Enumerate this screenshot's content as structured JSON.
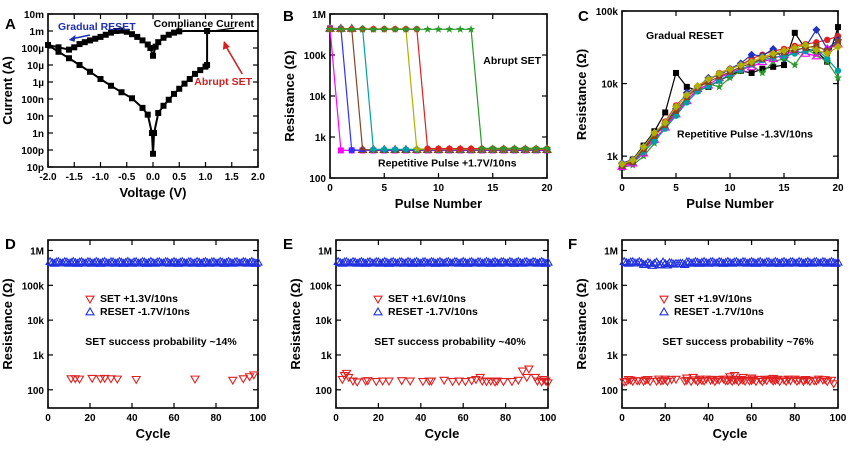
{
  "chart_data": [
    {
      "panel": "A",
      "type": "line",
      "xlabel": "Voltage (V)",
      "ylabel": "Current (A)",
      "xlim": [
        -2.0,
        2.0
      ],
      "ylim_log": [
        1e-11,
        0.01
      ],
      "x_ticks": [
        {
          "v": -2.0,
          "label": "-2.0"
        },
        {
          "v": -1.5,
          "label": "-1.5"
        },
        {
          "v": -1.0,
          "label": "-1.0"
        },
        {
          "v": -0.5,
          "label": "-0.5"
        },
        {
          "v": 0.0,
          "label": "0.0"
        },
        {
          "v": 0.5,
          "label": "0.5"
        },
        {
          "v": 1.0,
          "label": "1.0"
        },
        {
          "v": 1.5,
          "label": "1.5"
        },
        {
          "v": 2.0,
          "label": "2.0"
        }
      ],
      "y_ticks": [
        {
          "v": 1e-11,
          "label": "10p"
        },
        {
          "v": 1e-10,
          "label": "100p"
        },
        {
          "v": 1e-09,
          "label": "1n"
        },
        {
          "v": 1e-08,
          "label": "10n"
        },
        {
          "v": 1e-07,
          "label": "100n"
        },
        {
          "v": 1e-06,
          "label": "1µ"
        },
        {
          "v": 1e-05,
          "label": "10µ"
        },
        {
          "v": 0.0001,
          "label": "100µ"
        },
        {
          "v": 0.001,
          "label": "1m"
        },
        {
          "v": 0.01,
          "label": "10m"
        }
      ],
      "annotations": {
        "gradual": "Gradual RESET",
        "compliance": "Compliance Current",
        "abrupt": "Abrupt SET"
      },
      "colors": {
        "gradual": "#1f2fb0",
        "abrupt": "#d42020",
        "line": "#000000"
      },
      "series": [
        {
          "name": "sweep-upper",
          "points": [
            [
              -2.0,
              0.00015
            ],
            [
              -1.8,
              0.00011
            ],
            [
              -1.6,
              8e-05
            ],
            [
              -1.5,
              0.00011
            ],
            [
              -1.4,
              0.00017
            ],
            [
              -1.3,
              0.00022
            ],
            [
              -1.2,
              0.00028
            ],
            [
              -1.1,
              0.00035
            ],
            [
              -1.0,
              0.00045
            ],
            [
              -0.9,
              0.0006
            ],
            [
              -0.8,
              0.0008
            ],
            [
              -0.7,
              0.001
            ],
            [
              -0.6,
              0.00105
            ],
            [
              -0.5,
              0.0009
            ],
            [
              -0.4,
              0.00065
            ],
            [
              -0.3,
              0.00045
            ],
            [
              -0.2,
              0.00028
            ],
            [
              -0.1,
              0.00016
            ],
            [
              -0.05,
              0.0001
            ],
            [
              0.0,
              3.5e-05
            ],
            [
              0.05,
              0.00012
            ],
            [
              0.1,
              0.00022
            ],
            [
              0.2,
              0.0004
            ],
            [
              0.3,
              0.0006
            ],
            [
              0.4,
              0.0008
            ],
            [
              0.5,
              0.00095
            ],
            [
              0.6,
              0.001
            ],
            [
              0.8,
              0.001
            ],
            [
              1.0,
              0.001
            ],
            [
              1.2,
              0.001
            ],
            [
              1.4,
              0.001
            ],
            [
              1.6,
              0.001
            ],
            [
              1.8,
              0.001
            ],
            [
              2.0,
              0.001
            ]
          ]
        },
        {
          "name": "sweep-lower",
          "points": [
            [
              -2.0,
              0.00015
            ],
            [
              -1.8,
              6e-05
            ],
            [
              -1.6,
              2.5e-05
            ],
            [
              -1.4,
              1e-05
            ],
            [
              -1.2,
              4e-06
            ],
            [
              -1.0,
              1.5e-06
            ],
            [
              -0.8,
              6e-07
            ],
            [
              -0.6,
              2.5e-07
            ],
            [
              -0.4,
              1.1e-07
            ],
            [
              -0.2,
              3e-08
            ],
            [
              -0.1,
              1.2e-08
            ],
            [
              -0.02,
              1e-09
            ],
            [
              0.0,
              6e-11
            ],
            [
              0.02,
              1e-09
            ],
            [
              0.1,
              1.5e-08
            ],
            [
              0.2,
              4e-08
            ],
            [
              0.3,
              9e-08
            ],
            [
              0.4,
              2e-07
            ],
            [
              0.5,
              4e-07
            ],
            [
              0.6,
              8e-07
            ],
            [
              0.7,
              1.5e-06
            ],
            [
              0.8,
              3e-06
            ],
            [
              0.9,
              5e-06
            ],
            [
              1.0,
              8e-06
            ],
            [
              1.03,
              1e-05
            ],
            [
              1.03,
              0.001
            ]
          ]
        }
      ]
    },
    {
      "panel": "B",
      "type": "line",
      "xlabel": "Pulse Number",
      "ylabel": "Resistance (Ω)",
      "xlim": [
        0,
        20
      ],
      "ylim_log": [
        100,
        1000000
      ],
      "x_ticks": [
        {
          "v": 0,
          "label": "0"
        },
        {
          "v": 5,
          "label": "5"
        },
        {
          "v": 10,
          "label": "10"
        },
        {
          "v": 15,
          "label": "15"
        },
        {
          "v": 20,
          "label": "20"
        }
      ],
      "y_ticks": [
        {
          "v": 100,
          "label": "100"
        },
        {
          "v": 1000,
          "label": "1k"
        },
        {
          "v": 10000,
          "label": "10k"
        },
        {
          "v": 100000,
          "label": "100k"
        },
        {
          "v": 1000000,
          "label": "1M"
        }
      ],
      "annotations": {
        "abrupt": "Abrupt SET",
        "pulse": "Repetitive Pulse +1.7V/10ns"
      },
      "high_state": 450000,
      "low_state": 500,
      "switch_pulses": [
        1,
        2,
        3,
        4,
        8,
        9,
        14
      ],
      "series_colors": [
        "#ff00ff",
        "#3030ff",
        "#884422",
        "#00a0a0",
        "#b0b000",
        "#e02020",
        "#2a9a2a"
      ]
    },
    {
      "panel": "C",
      "type": "line",
      "xlabel": "Pulse Number",
      "ylabel": "Resistance (Ω)",
      "xlim": [
        0,
        20
      ],
      "ylim_log": [
        500,
        100000
      ],
      "x_ticks": [
        {
          "v": 0,
          "label": "0"
        },
        {
          "v": 5,
          "label": "5"
        },
        {
          "v": 10,
          "label": "10"
        },
        {
          "v": 15,
          "label": "15"
        },
        {
          "v": 20,
          "label": "20"
        }
      ],
      "y_ticks": [
        {
          "v": 1000,
          "label": "1k"
        },
        {
          "v": 10000,
          "label": "10k"
        },
        {
          "v": 100000,
          "label": "100k"
        }
      ],
      "annotations": {
        "gradual": "Gradual RESET",
        "pulse": "Repetitive Pulse -1.3V/10ns"
      },
      "series": [
        {
          "color": "#000000",
          "values": [
            700,
            900,
            1400,
            2200,
            4000,
            14000,
            9000,
            8000,
            9000,
            11000,
            13000,
            15000,
            14000,
            16000,
            17000,
            18000,
            50000,
            30000,
            28000,
            20000,
            60000
          ]
        },
        {
          "color": "#e02020",
          "values": [
            750,
            850,
            1200,
            1800,
            3000,
            5000,
            7000,
            9000,
            11000,
            14000,
            16000,
            18000,
            22000,
            25000,
            28000,
            30000,
            33000,
            35000,
            37000,
            40000,
            45000
          ]
        },
        {
          "color": "#2030c0",
          "values": [
            800,
            900,
            1300,
            2000,
            2800,
            4500,
            7500,
            9000,
            12000,
            13000,
            16000,
            19000,
            25000,
            24000,
            30000,
            22000,
            28000,
            32000,
            55000,
            30000,
            40000
          ]
        },
        {
          "color": "#2a9a2a",
          "values": [
            700,
            750,
            1000,
            1500,
            2600,
            4000,
            6000,
            8000,
            10000,
            9000,
            12000,
            15000,
            18000,
            14000,
            20000,
            22000,
            18000,
            30000,
            25000,
            20000,
            12000
          ]
        },
        {
          "color": "#ff00ff",
          "values": [
            720,
            800,
            1100,
            1700,
            2500,
            3800,
            5800,
            8500,
            9500,
            12000,
            14000,
            16000,
            17000,
            20000,
            22000,
            25000,
            28000,
            26000,
            24000,
            30000,
            35000
          ]
        },
        {
          "color": "#00a0a0",
          "values": [
            760,
            820,
            1150,
            1600,
            2400,
            3600,
            5500,
            7800,
            9200,
            11000,
            13500,
            15500,
            18500,
            21000,
            23000,
            24000,
            26000,
            28000,
            30000,
            22000,
            15000
          ]
        },
        {
          "color": "#884422",
          "values": [
            740,
            830,
            1250,
            1900,
            2700,
            4200,
            6500,
            8800,
            10500,
            12500,
            14500,
            17000,
            19000,
            22000,
            24500,
            27000,
            29000,
            31000,
            33000,
            28000,
            38000
          ]
        },
        {
          "color": "#b0b000",
          "values": [
            780,
            880,
            1350,
            2100,
            2900,
            4800,
            7000,
            9300,
            11500,
            13800,
            15800,
            18000,
            20000,
            23000,
            26000,
            28500,
            31000,
            34000,
            29000,
            26000,
            32000
          ]
        }
      ]
    },
    {
      "panel": "D",
      "type": "scatter",
      "xlabel": "Cycle",
      "ylabel": "Resistance (Ω)",
      "xlim": [
        0,
        100
      ],
      "ylim_log": [
        30,
        2000000
      ],
      "x_ticks": [
        {
          "v": 0,
          "label": "0"
        },
        {
          "v": 20,
          "label": "20"
        },
        {
          "v": 40,
          "label": "40"
        },
        {
          "v": 60,
          "label": "60"
        },
        {
          "v": 80,
          "label": "80"
        },
        {
          "v": 100,
          "label": "100"
        }
      ],
      "y_ticks": [
        {
          "v": 100,
          "label": "100"
        },
        {
          "v": 1000,
          "label": "1k"
        },
        {
          "v": 10000,
          "label": "10k"
        },
        {
          "v": 100000,
          "label": "100k"
        },
        {
          "v": 1000000,
          "label": "1M"
        }
      ],
      "legend": {
        "set": "SET +1.3V/10ns",
        "reset": "RESET -1.7V/10ns"
      },
      "probability": "SET success probability ~14%",
      "reset_level": 450000,
      "set_points": [
        [
          11,
          210
        ],
        [
          13,
          210
        ],
        [
          15,
          205
        ],
        [
          21,
          215
        ],
        [
          25,
          210
        ],
        [
          27,
          215
        ],
        [
          30,
          210
        ],
        [
          33,
          205
        ],
        [
          42,
          200
        ],
        [
          70,
          205
        ],
        [
          88,
          190
        ],
        [
          93,
          210
        ],
        [
          96,
          240
        ],
        [
          98,
          270
        ]
      ]
    },
    {
      "panel": "E",
      "type": "scatter",
      "xlabel": "Cycle",
      "ylabel": "Resistance (Ω)",
      "xlim": [
        0,
        100
      ],
      "ylim_log": [
        30,
        2000000
      ],
      "x_ticks": [
        {
          "v": 0,
          "label": "0"
        },
        {
          "v": 20,
          "label": "20"
        },
        {
          "v": 40,
          "label": "40"
        },
        {
          "v": 60,
          "label": "60"
        },
        {
          "v": 80,
          "label": "80"
        },
        {
          "v": 100,
          "label": "100"
        }
      ],
      "y_ticks": [
        {
          "v": 100,
          "label": "100"
        },
        {
          "v": 1000,
          "label": "1k"
        },
        {
          "v": 10000,
          "label": "10k"
        },
        {
          "v": 100000,
          "label": "100k"
        },
        {
          "v": 1000000,
          "label": "1M"
        }
      ],
      "legend": {
        "set": "SET +1.6V/10ns",
        "reset": "RESET -1.7V/10ns"
      },
      "probability": "SET success probability ~40%",
      "reset_level": 450000,
      "set_points": [
        [
          3,
          200
        ],
        [
          4,
          260
        ],
        [
          5,
          300
        ],
        [
          6,
          230
        ],
        [
          8,
          180
        ],
        [
          10,
          170
        ],
        [
          14,
          180
        ],
        [
          19,
          175
        ],
        [
          22,
          180
        ],
        [
          31,
          185
        ],
        [
          35,
          180
        ],
        [
          41,
          175
        ],
        [
          44,
          180
        ],
        [
          51,
          190
        ],
        [
          55,
          175
        ],
        [
          58,
          180
        ],
        [
          61,
          175
        ],
        [
          64,
          185
        ],
        [
          66,
          200
        ],
        [
          68,
          230
        ],
        [
          69,
          180
        ],
        [
          71,
          175
        ],
        [
          73,
          180
        ],
        [
          75,
          170
        ],
        [
          76,
          180
        ],
        [
          79,
          175
        ],
        [
          83,
          175
        ],
        [
          86,
          190
        ],
        [
          88,
          350
        ],
        [
          90,
          230
        ],
        [
          91,
          400
        ],
        [
          94,
          230
        ],
        [
          95,
          180
        ],
        [
          97,
          170
        ],
        [
          98,
          200
        ],
        [
          99,
          180
        ],
        [
          100,
          160
        ],
        [
          45,
          180
        ],
        [
          25,
          180
        ],
        [
          15,
          185
        ]
      ]
    },
    {
      "panel": "F",
      "type": "scatter",
      "xlabel": "Cycle",
      "ylabel": "Resistance (Ω)",
      "xlim": [
        0,
        100
      ],
      "ylim_log": [
        30,
        2000000
      ],
      "x_ticks": [
        {
          "v": 0,
          "label": "0"
        },
        {
          "v": 20,
          "label": "20"
        },
        {
          "v": 40,
          "label": "40"
        },
        {
          "v": 60,
          "label": "60"
        },
        {
          "v": 80,
          "label": "80"
        },
        {
          "v": 100,
          "label": "100"
        }
      ],
      "y_ticks": [
        {
          "v": 100,
          "label": "100"
        },
        {
          "v": 1000,
          "label": "1k"
        },
        {
          "v": 10000,
          "label": "10k"
        },
        {
          "v": 100000,
          "label": "100k"
        },
        {
          "v": 1000000,
          "label": "1M"
        }
      ],
      "legend": {
        "set": "SET +1.9V/10ns",
        "reset": "RESET -1.7V/10ns"
      },
      "probability": "SET success probability ~76%",
      "reset_level": 450000,
      "set_range": [
        2,
        99
      ],
      "set_base": 190,
      "set_missing": [
        6,
        9,
        14,
        22,
        24,
        26,
        27,
        28,
        33,
        40,
        46,
        58,
        63,
        68,
        74,
        79,
        83,
        88,
        92,
        96,
        98,
        99,
        15,
        31
      ],
      "set_spikes": [
        [
          1,
          170
        ],
        [
          30,
          220
        ],
        [
          33,
          230
        ],
        [
          50,
          240
        ],
        [
          52,
          260
        ],
        [
          56,
          230
        ],
        [
          60,
          220
        ],
        [
          64,
          200
        ],
        [
          70,
          215
        ],
        [
          84,
          185
        ],
        [
          98,
          150
        ]
      ]
    }
  ],
  "panel_letters": [
    "A",
    "B",
    "C",
    "D",
    "E",
    "F"
  ]
}
